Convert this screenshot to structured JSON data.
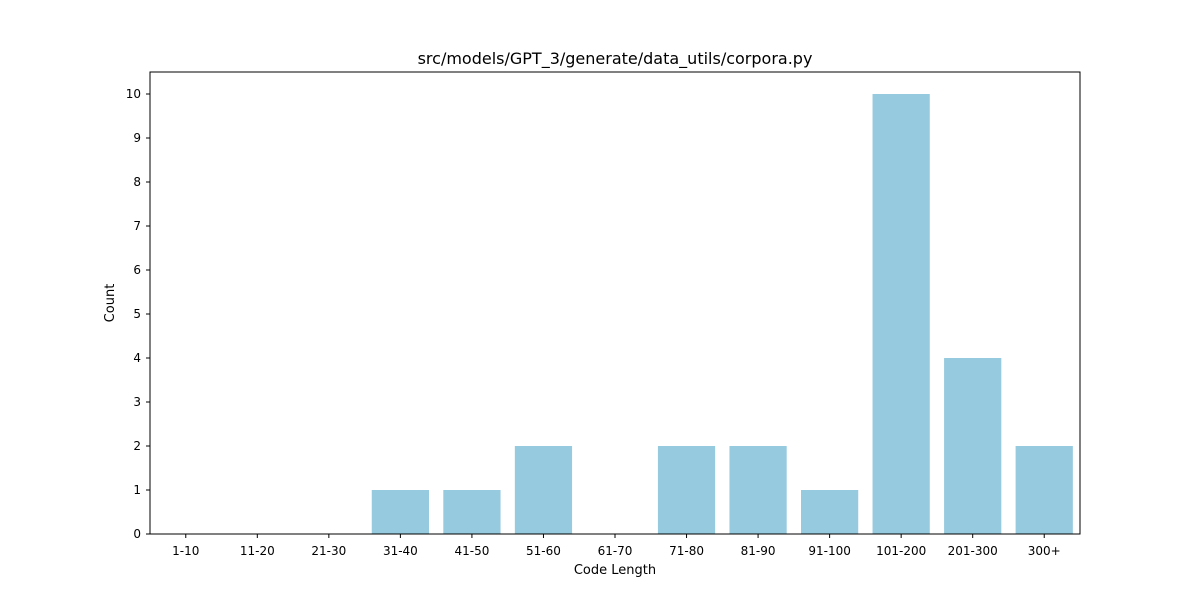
{
  "chart_data": {
    "type": "bar",
    "title": "src/models/GPT_3/generate/data_utils/corpora.py",
    "xlabel": "Code Length",
    "ylabel": "Count",
    "categories": [
      "1-10",
      "11-20",
      "21-30",
      "31-40",
      "41-50",
      "51-60",
      "61-70",
      "71-80",
      "81-90",
      "91-100",
      "101-200",
      "201-300",
      "300+"
    ],
    "values": [
      0,
      0,
      0,
      1,
      1,
      2,
      0,
      2,
      2,
      1,
      10,
      4,
      2
    ],
    "ylim": [
      0,
      10.5
    ],
    "yticks": [
      0,
      1,
      2,
      3,
      4,
      5,
      6,
      7,
      8,
      9,
      10
    ],
    "grid": false,
    "colors": {
      "bar": "#96cade",
      "axis": "#000000",
      "background": "#ffffff"
    }
  }
}
